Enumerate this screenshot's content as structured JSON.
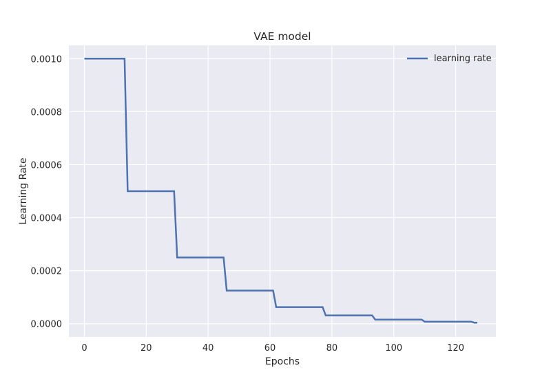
{
  "chart_data": {
    "type": "line",
    "title": "VAE model",
    "xlabel": "Epochs",
    "ylabel": "Learning Rate",
    "xlim": [
      -5,
      133
    ],
    "ylim": [
      -5e-05,
      0.00105
    ],
    "xticks": [
      0,
      20,
      40,
      60,
      80,
      100,
      120
    ],
    "xtick_labels": [
      "0",
      "20",
      "40",
      "60",
      "80",
      "100",
      "120"
    ],
    "yticks": [
      0.0,
      0.0002,
      0.0004,
      0.0006,
      0.0008,
      0.001
    ],
    "ytick_labels": [
      "0.0000",
      "0.0002",
      "0.0004",
      "0.0006",
      "0.0008",
      "0.0010"
    ],
    "grid": true,
    "legend_position": "top-right",
    "series": [
      {
        "name": "learning rate",
        "color": "#4c72b0",
        "x": [
          0,
          13,
          14,
          29,
          30,
          45,
          46,
          61,
          62,
          77,
          78,
          93,
          94,
          109,
          110,
          125,
          126,
          127
        ],
        "y": [
          0.001,
          0.001,
          0.0005,
          0.0005,
          0.00025,
          0.00025,
          0.000125,
          0.000125,
          6.25e-05,
          6.25e-05,
          3.125e-05,
          3.125e-05,
          1.5625e-05,
          1.5625e-05,
          7.8125e-06,
          7.8125e-06,
          3.9e-06,
          3.9e-06
        ]
      }
    ]
  },
  "style": {
    "plot_background": "#eaeaf2",
    "grid_color": "#ffffff",
    "text_color": "#262626"
  }
}
